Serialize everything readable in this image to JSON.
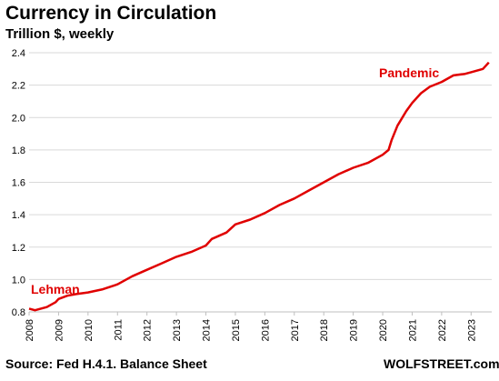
{
  "chart_data": {
    "type": "line",
    "title": "Currency in Circulation",
    "subtitle": "Trillion $, weekly",
    "ylim": [
      0.8,
      2.4
    ],
    "yticks": [
      "0.8",
      "1.0",
      "1.2",
      "1.4",
      "1.6",
      "1.8",
      "2.0",
      "2.2",
      "2.4"
    ],
    "xlim": [
      2008,
      2023.7
    ],
    "xticks": [
      "2008",
      "2009",
      "2010",
      "2011",
      "2012",
      "2013",
      "2014",
      "2015",
      "2016",
      "2017",
      "2018",
      "2019",
      "2020",
      "2021",
      "2022",
      "2023"
    ],
    "grid": true,
    "series_color": "#e00000",
    "series": [
      {
        "x": [
          2008.0,
          2008.2,
          2008.4,
          2008.6,
          2008.9,
          2009.0,
          2009.3,
          2009.6,
          2010.0,
          2010.5,
          2011.0,
          2011.5,
          2012.0,
          2012.5,
          2013.0,
          2013.5,
          2014.0,
          2014.2,
          2014.7,
          2015.0,
          2015.5,
          2016.0,
          2016.5,
          2017.0,
          2017.5,
          2018.0,
          2018.5,
          2019.0,
          2019.5,
          2020.0,
          2020.2,
          2020.3,
          2020.5,
          2020.8,
          2021.0,
          2021.3,
          2021.6,
          2022.0,
          2022.4,
          2022.8,
          2023.0,
          2023.4,
          2023.6
        ],
        "y": [
          0.82,
          0.81,
          0.82,
          0.83,
          0.86,
          0.88,
          0.9,
          0.91,
          0.92,
          0.94,
          0.97,
          1.02,
          1.06,
          1.1,
          1.14,
          1.17,
          1.21,
          1.25,
          1.29,
          1.34,
          1.37,
          1.41,
          1.46,
          1.5,
          1.55,
          1.6,
          1.65,
          1.69,
          1.72,
          1.77,
          1.8,
          1.86,
          1.95,
          2.04,
          2.09,
          2.15,
          2.19,
          2.22,
          2.26,
          2.27,
          2.28,
          2.3,
          2.34
        ]
      }
    ],
    "annotations": [
      {
        "text": "Lehman",
        "x": 2008.9,
        "y": 0.86
      },
      {
        "text": "Pandemic",
        "x": 2020.2,
        "y": 1.8
      }
    ]
  },
  "source": "Source: Fed H.4.1. Balance Sheet",
  "brand": "WOLFSTREET.com"
}
